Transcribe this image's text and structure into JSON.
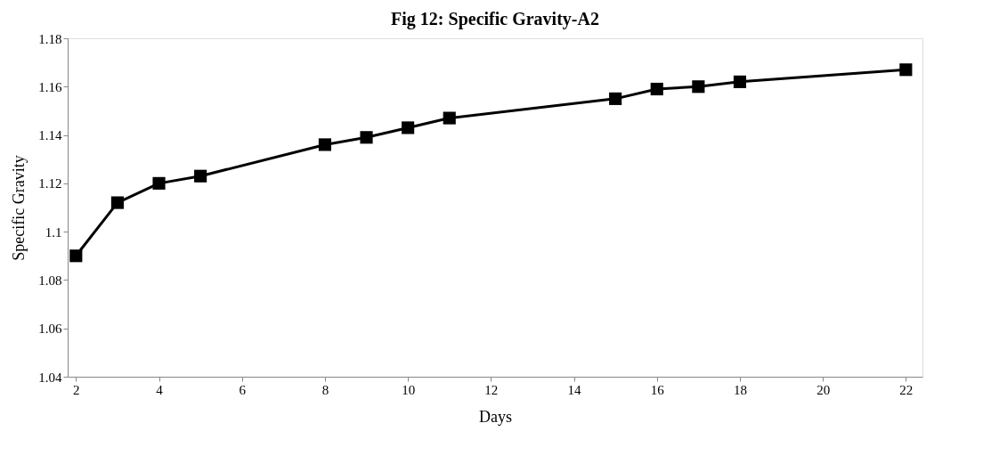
{
  "chart_data": {
    "type": "line",
    "title": "Fig 12:  Specific Gravity-A2",
    "xlabel": "Days",
    "ylabel": "Specific Gravity",
    "x": [
      2,
      3,
      4,
      5,
      8,
      9,
      10,
      11,
      15,
      16,
      17,
      18,
      22
    ],
    "series": [
      {
        "color": "#000000",
        "values": [
          1.09,
          1.112,
          1.12,
          1.123,
          1.136,
          1.139,
          1.143,
          1.147,
          1.155,
          1.159,
          1.16,
          1.162,
          1.167
        ]
      }
    ],
    "xlim": [
      1.8,
      22.4
    ],
    "xticks": [
      2,
      4,
      6,
      8,
      10,
      12,
      14,
      16,
      18,
      20,
      22
    ],
    "ylim": [
      1.04,
      1.18
    ],
    "yticks": [
      1.04,
      1.06,
      1.08,
      1.1,
      1.12,
      1.14,
      1.16,
      1.18
    ],
    "grid": false,
    "marker": "square",
    "line_style": "solid"
  }
}
